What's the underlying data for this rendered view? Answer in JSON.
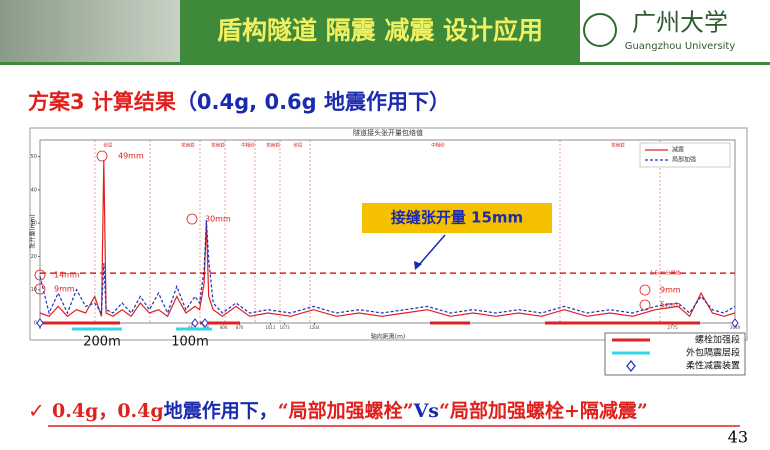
{
  "header": {
    "title": "盾构隧道 隔震 减震 设计应用",
    "logo": "广州大学",
    "logo_sub": "Guangzhou University"
  },
  "subtitle": [
    {
      "text": "方案3 计算结果",
      "color": "#e0201c"
    },
    {
      "text": "（0.4g, 0.6g 地震作用下）",
      "color": "#1a2bb0"
    }
  ],
  "chart_data": {
    "type": "line",
    "title": "隧道接头张开量包络值",
    "x_label": "轴向距离(m)",
    "y_label": "张开量(mm)",
    "x": [
      0,
      40,
      80,
      120,
      160,
      200,
      240,
      270,
      280,
      290,
      320,
      360,
      400,
      440,
      480,
      520,
      560,
      600,
      640,
      680,
      700,
      720,
      730,
      740,
      760,
      800,
      860,
      920,
      1000,
      1100,
      1200,
      1300,
      1400,
      1500,
      1600,
      1700,
      1800,
      1900,
      2000,
      2100,
      2200,
      2300,
      2400,
      2500,
      2600,
      2700,
      2800,
      2850,
      2900,
      2950,
      3000,
      3049
    ],
    "series": [
      {
        "name": "减震",
        "color": "#e02020",
        "dash": false,
        "values": [
          3,
          2,
          5,
          2,
          4,
          3,
          8,
          2,
          49,
          3,
          2,
          4,
          2,
          6,
          3,
          4,
          2,
          8,
          3,
          5,
          4,
          12,
          30,
          8,
          4,
          2,
          5,
          2,
          3,
          2,
          4,
          2,
          3,
          2,
          3,
          4,
          2,
          3,
          2,
          3,
          2,
          4,
          2,
          3,
          2,
          4,
          5,
          2,
          9,
          3,
          2,
          3
        ]
      },
      {
        "name": "局部加强",
        "color": "#2030c0",
        "dash": true,
        "values": [
          14,
          3,
          9,
          3,
          10,
          5,
          6,
          3,
          18,
          4,
          3,
          6,
          3,
          8,
          4,
          9,
          3,
          11,
          4,
          8,
          6,
          16,
          31,
          19,
          6,
          3,
          6,
          3,
          4,
          3,
          5,
          3,
          4,
          3,
          4,
          5,
          3,
          4,
          3,
          4,
          3,
          5,
          3,
          4,
          3,
          5,
          6,
          3,
          8,
          4,
          3,
          5
        ]
      }
    ],
    "xlim": [
      0,
      3049
    ],
    "xticks": [
      0,
      667,
      726,
      806,
      876,
      1011,
      1073,
      1204,
      2775,
      3049
    ],
    "ylim": [
      0,
      55
    ],
    "yticks": [
      0,
      10,
      20,
      30,
      40,
      50
    ],
    "threshold": {
      "value": 15,
      "label": "1.5cm分界线",
      "color": "#e02020"
    },
    "annotations": [
      "49mm",
      "30mm",
      "14mm",
      "9mm",
      "9mm",
      "5mm"
    ],
    "strata": [
      "砂层",
      "花岗岩",
      "花岗岩",
      "中粗砂",
      "花岗岩",
      "砂层",
      "中粗砂",
      "花岗岩"
    ],
    "callout": "接缝张开量 15mm",
    "spans": [
      "200m",
      "100m"
    ],
    "legend2": [
      {
        "label": "螺栓加强段",
        "color": "#e02020"
      },
      {
        "label": "外包隔震层段",
        "color": "#33d6e8"
      },
      {
        "label": "柔性减震装置",
        "color": "#2030c0"
      }
    ]
  },
  "conclusion": [
    {
      "text": "0.4g，0.4g",
      "color": "#e0201c"
    },
    {
      "text": "地震作用下，",
      "color": "#1a2bb0"
    },
    {
      "text": "“局部加强螺栓”",
      "color": "#e0201c"
    },
    {
      "text": "Vs",
      "color": "#1a2bb0"
    },
    {
      "text": "“局部加强螺栓+隔减震”",
      "color": "#e0201c"
    }
  ],
  "page_number": "43"
}
